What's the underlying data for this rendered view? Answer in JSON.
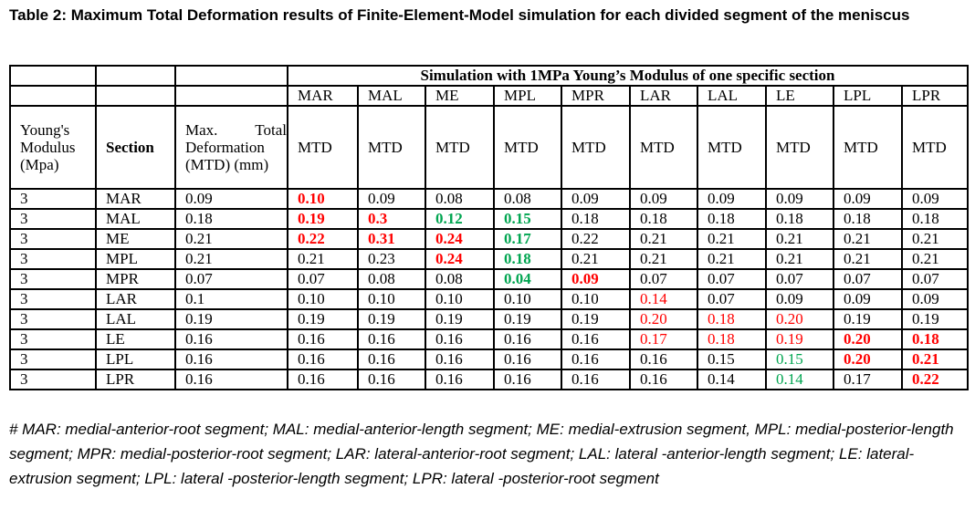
{
  "caption": "Table 2: Maximum Total Deformation results of Finite-Element-Model simulation for each divided segment of the meniscus",
  "header": {
    "group_title": "Simulation with 1MPa Young’s Modulus of one specific section",
    "col_young": "Young's Modulus (Mpa)",
    "col_section": "Section",
    "col_mtd": "Max. Total Deformation (MTD) (mm)",
    "sections": [
      "MAR",
      "MAL",
      "ME",
      "MPL",
      "MPR",
      "LAR",
      "LAL",
      "LE",
      "LPL",
      "LPR"
    ],
    "sub_label": "MTD"
  },
  "style_colors": {
    "red": "#ff0000",
    "green": "#00a550"
  },
  "rows": [
    {
      "young": "3",
      "section": "MAR",
      "mtd": "0.09",
      "cells": [
        [
          "0.10",
          "r"
        ],
        [
          "0.09",
          ""
        ],
        [
          "0.08",
          ""
        ],
        [
          "0.08",
          ""
        ],
        [
          "0.09",
          ""
        ],
        [
          "0.09",
          ""
        ],
        [
          "0.09",
          ""
        ],
        [
          "0.09",
          ""
        ],
        [
          "0.09",
          ""
        ],
        [
          "0.09",
          ""
        ]
      ]
    },
    {
      "young": "3",
      "section": "MAL",
      "mtd": "0.18",
      "cells": [
        [
          "0.19",
          "r"
        ],
        [
          "0.3",
          "r"
        ],
        [
          "0.12",
          "g"
        ],
        [
          "0.15",
          "g"
        ],
        [
          "0.18",
          ""
        ],
        [
          "0.18",
          ""
        ],
        [
          "0.18",
          ""
        ],
        [
          "0.18",
          ""
        ],
        [
          "0.18",
          ""
        ],
        [
          "0.18",
          ""
        ]
      ]
    },
    {
      "young": "3",
      "section": "ME",
      "mtd": "0.21",
      "cells": [
        [
          "0.22",
          "r"
        ],
        [
          "0.31",
          "r"
        ],
        [
          "0.24",
          "r"
        ],
        [
          "0.17",
          "g"
        ],
        [
          "0.22",
          ""
        ],
        [
          "0.21",
          ""
        ],
        [
          "0.21",
          ""
        ],
        [
          "0.21",
          ""
        ],
        [
          "0.21",
          ""
        ],
        [
          "0.21",
          ""
        ]
      ]
    },
    {
      "young": "3",
      "section": "MPL",
      "mtd": "0.21",
      "cells": [
        [
          "0.21",
          ""
        ],
        [
          "0.23",
          ""
        ],
        [
          "0.24",
          "r"
        ],
        [
          "0.18",
          "g"
        ],
        [
          "0.21",
          ""
        ],
        [
          "0.21",
          ""
        ],
        [
          "0.21",
          ""
        ],
        [
          "0.21",
          ""
        ],
        [
          "0.21",
          ""
        ],
        [
          "0.21",
          ""
        ]
      ]
    },
    {
      "young": "3",
      "section": "MPR",
      "mtd": "0.07",
      "cells": [
        [
          "0.07",
          ""
        ],
        [
          "0.08",
          ""
        ],
        [
          "0.08",
          ""
        ],
        [
          "0.04",
          "g"
        ],
        [
          "0.09",
          "r"
        ],
        [
          "0.07",
          ""
        ],
        [
          "0.07",
          ""
        ],
        [
          "0.07",
          ""
        ],
        [
          "0.07",
          ""
        ],
        [
          "0.07",
          ""
        ]
      ]
    },
    {
      "young": "3",
      "section": "LAR",
      "mtd": "0.1",
      "cells": [
        [
          "0.10",
          ""
        ],
        [
          "0.10",
          ""
        ],
        [
          "0.10",
          ""
        ],
        [
          "0.10",
          ""
        ],
        [
          "0.10",
          ""
        ],
        [
          "0.14",
          "rl"
        ],
        [
          "0.07",
          ""
        ],
        [
          "0.09",
          ""
        ],
        [
          "0.09",
          ""
        ],
        [
          "0.09",
          ""
        ]
      ]
    },
    {
      "young": "3",
      "section": "LAL",
      "mtd": "0.19",
      "cells": [
        [
          "0.19",
          ""
        ],
        [
          "0.19",
          ""
        ],
        [
          "0.19",
          ""
        ],
        [
          "0.19",
          ""
        ],
        [
          "0.19",
          ""
        ],
        [
          "0.20",
          "rl"
        ],
        [
          "0.18",
          "rl"
        ],
        [
          "0.20",
          "rl"
        ],
        [
          "0.19",
          ""
        ],
        [
          "0.19",
          ""
        ]
      ]
    },
    {
      "young": "3",
      "section": "LE",
      "mtd": "0.16",
      "cells": [
        [
          "0.16",
          ""
        ],
        [
          "0.16",
          ""
        ],
        [
          "0.16",
          ""
        ],
        [
          "0.16",
          ""
        ],
        [
          "0.16",
          ""
        ],
        [
          "0.17",
          "rl"
        ],
        [
          "0.18",
          "rl"
        ],
        [
          "0.19",
          "rl"
        ],
        [
          "0.20",
          "r"
        ],
        [
          "0.18",
          "r"
        ]
      ]
    },
    {
      "young": "3",
      "section": "LPL",
      "mtd": "0.16",
      "cells": [
        [
          "0.16",
          ""
        ],
        [
          "0.16",
          ""
        ],
        [
          "0.16",
          ""
        ],
        [
          "0.16",
          ""
        ],
        [
          "0.16",
          ""
        ],
        [
          "0.16",
          ""
        ],
        [
          "0.15",
          ""
        ],
        [
          "0.15",
          "gl"
        ],
        [
          "0.20",
          "r"
        ],
        [
          "0.21",
          "r"
        ]
      ]
    },
    {
      "young": "3",
      "section": "LPR",
      "mtd": "0.16",
      "cells": [
        [
          "0.16",
          ""
        ],
        [
          "0.16",
          ""
        ],
        [
          "0.16",
          ""
        ],
        [
          "0.16",
          ""
        ],
        [
          "0.16",
          ""
        ],
        [
          "0.16",
          ""
        ],
        [
          "0.14",
          ""
        ],
        [
          "0.14",
          "gl"
        ],
        [
          "0.17",
          ""
        ],
        [
          "0.22",
          "r"
        ]
      ]
    }
  ],
  "footnote": "# MAR: medial-anterior-root segment; MAL: medial-anterior-length segment; ME: medial-extrusion segment, MPL: medial-posterior-length segment;  MPR: medial-posterior-root segment;  LAR: lateral-anterior-root segment;  LAL: lateral -anterior-length segment; LE: lateral-extrusion segment; LPL: lateral -posterior-length segment; LPR: lateral -posterior-root segment"
}
